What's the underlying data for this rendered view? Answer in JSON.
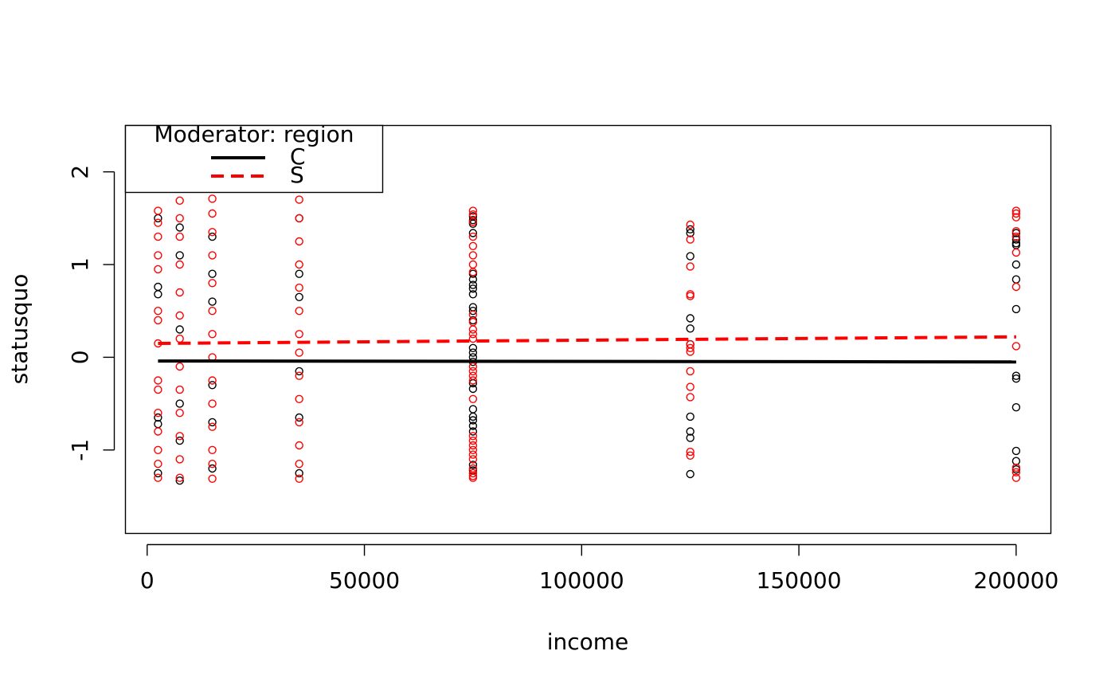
{
  "chart_data": {
    "type": "scatter",
    "title": "",
    "xlabel": "income",
    "ylabel": "statusquo",
    "xlim": [
      -5000,
      208000
    ],
    "ylim": [
      -1.9,
      2.5
    ],
    "x_ticks": [
      0,
      50000,
      100000,
      150000,
      200000
    ],
    "x_tick_labels": [
      "0",
      "50000",
      "100000",
      "150000",
      "200000"
    ],
    "y_ticks": [
      -1,
      0,
      1,
      2
    ],
    "y_tick_labels": [
      "-1",
      "0",
      "1",
      "2"
    ],
    "grid": false,
    "legend": {
      "title": "Moderator: region",
      "placement": "top-left",
      "entries": [
        {
          "label": "C",
          "color": "#000000",
          "line": "solid"
        },
        {
          "label": "S",
          "color": "#ff0000",
          "line": "dashed"
        }
      ]
    },
    "series": [
      {
        "name": "C",
        "color": "#000000",
        "points": [
          [
            2500,
            0.76
          ],
          [
            2500,
            0.68
          ],
          [
            2500,
            -0.65
          ],
          [
            2500,
            -0.72
          ],
          [
            2500,
            1.5
          ],
          [
            2500,
            -1.25
          ],
          [
            7500,
            1.1
          ],
          [
            7500,
            0.3
          ],
          [
            7500,
            -0.5
          ],
          [
            7500,
            -1.33
          ],
          [
            7500,
            1.4
          ],
          [
            7500,
            -0.9
          ],
          [
            15000,
            0.9
          ],
          [
            15000,
            0.6
          ],
          [
            15000,
            -0.3
          ],
          [
            15000,
            -1.2
          ],
          [
            15000,
            1.3
          ],
          [
            15000,
            -0.7
          ],
          [
            35000,
            1.5
          ],
          [
            35000,
            0.65
          ],
          [
            35000,
            -0.15
          ],
          [
            35000,
            -0.65
          ],
          [
            35000,
            -1.25
          ],
          [
            35000,
            0.9
          ],
          [
            75000,
            1.52
          ],
          [
            75000,
            1.48
          ],
          [
            75000,
            1.44
          ],
          [
            75000,
            1.34
          ],
          [
            75000,
            0.9
          ],
          [
            75000,
            0.84
          ],
          [
            75000,
            0.78
          ],
          [
            75000,
            0.74
          ],
          [
            75000,
            0.68
          ],
          [
            75000,
            0.54
          ],
          [
            75000,
            0.5
          ],
          [
            75000,
            0.4
          ],
          [
            75000,
            0.1
          ],
          [
            75000,
            0.05
          ],
          [
            75000,
            0.0
          ],
          [
            75000,
            -0.05
          ],
          [
            75000,
            -0.28
          ],
          [
            75000,
            -0.34
          ],
          [
            75000,
            -0.56
          ],
          [
            75000,
            -0.64
          ],
          [
            75000,
            -0.68
          ],
          [
            75000,
            -0.74
          ],
          [
            75000,
            -0.8
          ],
          [
            75000,
            -1.16
          ],
          [
            75000,
            -1.22
          ],
          [
            125000,
            1.38
          ],
          [
            125000,
            1.34
          ],
          [
            125000,
            1.09
          ],
          [
            125000,
            0.42
          ],
          [
            125000,
            0.31
          ],
          [
            125000,
            0.14
          ],
          [
            125000,
            -0.64
          ],
          [
            125000,
            -0.8
          ],
          [
            125000,
            -0.87
          ],
          [
            125000,
            -1.26
          ],
          [
            200000,
            1.34
          ],
          [
            200000,
            1.27
          ],
          [
            200000,
            1.23
          ],
          [
            200000,
            1.21
          ],
          [
            200000,
            1.0
          ],
          [
            200000,
            0.84
          ],
          [
            200000,
            0.52
          ],
          [
            200000,
            -0.2
          ],
          [
            200000,
            -0.23
          ],
          [
            200000,
            -0.54
          ],
          [
            200000,
            -1.01
          ],
          [
            200000,
            -1.12
          ],
          [
            200000,
            -1.21
          ]
        ],
        "fit_line": {
          "x": [
            2500,
            200000
          ],
          "y": [
            -0.04,
            -0.05
          ]
        }
      },
      {
        "name": "S",
        "color": "#ff0000",
        "points": [
          [
            2500,
            1.58
          ],
          [
            2500,
            1.45
          ],
          [
            2500,
            1.3
          ],
          [
            2500,
            1.1
          ],
          [
            2500,
            0.95
          ],
          [
            2500,
            0.5
          ],
          [
            2500,
            0.4
          ],
          [
            2500,
            0.15
          ],
          [
            2500,
            -0.25
          ],
          [
            2500,
            -0.35
          ],
          [
            2500,
            -0.6
          ],
          [
            2500,
            -0.8
          ],
          [
            2500,
            -1.0
          ],
          [
            2500,
            -1.15
          ],
          [
            2500,
            -1.3
          ],
          [
            7500,
            1.69
          ],
          [
            7500,
            1.5
          ],
          [
            7500,
            1.3
          ],
          [
            7500,
            1.0
          ],
          [
            7500,
            0.7
          ],
          [
            7500,
            0.45
          ],
          [
            7500,
            0.2
          ],
          [
            7500,
            -0.1
          ],
          [
            7500,
            -0.35
          ],
          [
            7500,
            -0.6
          ],
          [
            7500,
            -0.85
          ],
          [
            7500,
            -1.1
          ],
          [
            7500,
            -1.3
          ],
          [
            15000,
            1.71
          ],
          [
            15000,
            1.55
          ],
          [
            15000,
            1.35
          ],
          [
            15000,
            1.1
          ],
          [
            15000,
            0.8
          ],
          [
            15000,
            0.5
          ],
          [
            15000,
            0.25
          ],
          [
            15000,
            0.0
          ],
          [
            15000,
            -0.25
          ],
          [
            15000,
            -0.5
          ],
          [
            15000,
            -0.75
          ],
          [
            15000,
            -1.0
          ],
          [
            15000,
            -1.15
          ],
          [
            15000,
            -1.31
          ],
          [
            35000,
            1.7
          ],
          [
            35000,
            1.5
          ],
          [
            35000,
            1.25
          ],
          [
            35000,
            1.0
          ],
          [
            35000,
            0.75
          ],
          [
            35000,
            0.5
          ],
          [
            35000,
            0.25
          ],
          [
            35000,
            0.05
          ],
          [
            35000,
            -0.2
          ],
          [
            35000,
            -0.45
          ],
          [
            35000,
            -0.7
          ],
          [
            35000,
            -0.95
          ],
          [
            35000,
            -1.15
          ],
          [
            35000,
            -1.31
          ],
          [
            75000,
            1.58
          ],
          [
            75000,
            1.54
          ],
          [
            75000,
            1.46
          ],
          [
            75000,
            1.3
          ],
          [
            75000,
            1.2
          ],
          [
            75000,
            1.1
          ],
          [
            75000,
            1.0
          ],
          [
            75000,
            0.92
          ],
          [
            75000,
            0.46
          ],
          [
            75000,
            0.38
          ],
          [
            75000,
            0.3
          ],
          [
            75000,
            0.25
          ],
          [
            75000,
            0.2
          ],
          [
            75000,
            -0.1
          ],
          [
            75000,
            -0.15
          ],
          [
            75000,
            -0.2
          ],
          [
            75000,
            -0.25
          ],
          [
            75000,
            -0.45
          ],
          [
            75000,
            -0.85
          ],
          [
            75000,
            -0.9
          ],
          [
            75000,
            -0.95
          ],
          [
            75000,
            -1.0
          ],
          [
            75000,
            -1.05
          ],
          [
            75000,
            -1.1
          ],
          [
            75000,
            -1.2
          ],
          [
            75000,
            -1.25
          ],
          [
            75000,
            -1.28
          ],
          [
            75000,
            -1.3
          ],
          [
            125000,
            1.43
          ],
          [
            125000,
            1.27
          ],
          [
            125000,
            0.98
          ],
          [
            125000,
            0.68
          ],
          [
            125000,
            0.66
          ],
          [
            125000,
            0.14
          ],
          [
            125000,
            0.1
          ],
          [
            125000,
            0.06
          ],
          [
            125000,
            -0.15
          ],
          [
            125000,
            -0.32
          ],
          [
            125000,
            -0.43
          ],
          [
            125000,
            -1.02
          ],
          [
            125000,
            -1.06
          ],
          [
            200000,
            1.58
          ],
          [
            200000,
            1.55
          ],
          [
            200000,
            1.51
          ],
          [
            200000,
            1.36
          ],
          [
            200000,
            1.3
          ],
          [
            200000,
            1.13
          ],
          [
            200000,
            0.76
          ],
          [
            200000,
            0.12
          ],
          [
            200000,
            -1.19
          ],
          [
            200000,
            -1.24
          ],
          [
            200000,
            -1.3
          ]
        ],
        "fit_line": {
          "x": [
            2500,
            200000
          ],
          "y": [
            0.15,
            0.22
          ]
        }
      }
    ]
  }
}
